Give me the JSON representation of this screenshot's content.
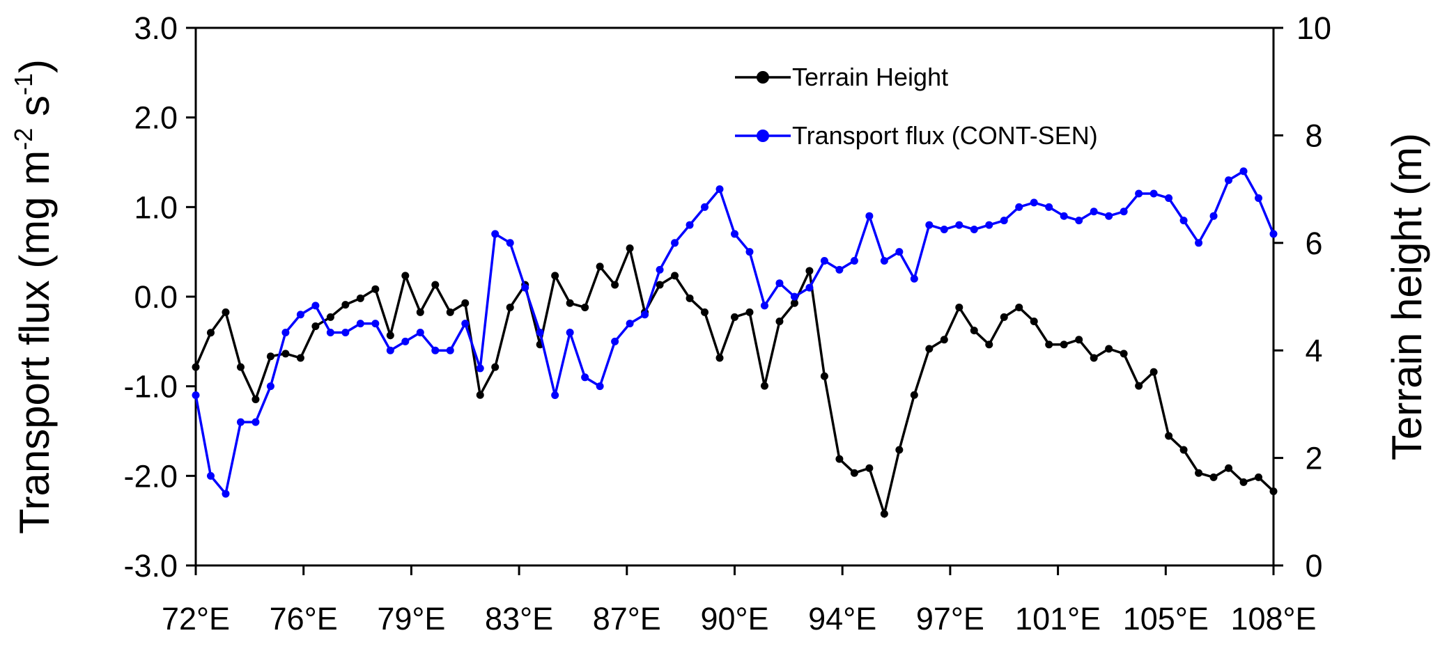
{
  "chart_data": {
    "type": "line",
    "ylabel": [
      "Transport flux (mg m",
      "-2",
      " s",
      "-1",
      ")"
    ],
    "y2label": "Terrain height (m)",
    "x": [
      72,
      72.5,
      73,
      73.5,
      74,
      74.5,
      75,
      75.5,
      76,
      76.5,
      77,
      77.5,
      78,
      78.5,
      79,
      79.5,
      80,
      80.5,
      81,
      81.5,
      82,
      82.5,
      83,
      83.5,
      84,
      84.5,
      85,
      85.5,
      86,
      86.5,
      87,
      87.5,
      88,
      88.5,
      89,
      89.5,
      90,
      90.5,
      91,
      91.5,
      92,
      92.5,
      93,
      93.5,
      94,
      94.5,
      95,
      95.5,
      96,
      96.5,
      97,
      97.5,
      98,
      98.5,
      99,
      99.5,
      100,
      100.5,
      101,
      101.5,
      102,
      102.5,
      103,
      103.5,
      104,
      104.5,
      105,
      105.5,
      106,
      106.5,
      107,
      107.5,
      108
    ],
    "series": [
      {
        "name": "Terrain Height",
        "color": "#000000",
        "axis": "y2",
        "values": [
          3.69,
          4.33,
          4.71,
          3.69,
          3.09,
          3.89,
          3.94,
          3.86,
          4.45,
          4.62,
          4.85,
          4.97,
          5.14,
          4.28,
          5.39,
          4.71,
          5.22,
          4.71,
          4.88,
          3.17,
          3.69,
          4.8,
          5.22,
          4.11,
          5.39,
          4.88,
          4.8,
          5.56,
          5.22,
          5.9,
          4.71,
          5.22,
          5.39,
          4.97,
          4.71,
          3.86,
          4.62,
          4.71,
          3.34,
          4.54,
          4.88,
          5.48,
          3.52,
          1.98,
          1.72,
          1.81,
          0.96,
          2.15,
          3.17,
          4.03,
          4.2,
          4.8,
          4.37,
          4.11,
          4.62,
          4.8,
          4.54,
          4.11,
          4.11,
          4.2,
          3.86,
          4.03,
          3.94,
          3.34,
          3.6,
          2.41,
          2.15,
          1.72,
          1.64,
          1.81,
          1.55,
          1.64,
          1.38
        ]
      },
      {
        "name": "Transport flux (CONT-SEN)",
        "color": "#0000ff",
        "values": [
          -1.1,
          -2.0,
          -2.2,
          -1.4,
          -1.4,
          -1.0,
          -0.4,
          -0.2,
          -0.1,
          -0.4,
          -0.4,
          -0.3,
          -0.3,
          -0.6,
          -0.5,
          -0.4,
          -0.6,
          -0.6,
          -0.3,
          -0.8,
          0.7,
          0.6,
          0.1,
          -0.4,
          -1.1,
          -0.4,
          -0.9,
          -1.0,
          -0.5,
          -0.3,
          -0.2,
          0.3,
          0.6,
          0.8,
          1.0,
          1.2,
          0.7,
          0.5,
          -0.1,
          0.15,
          0.0,
          0.1,
          0.4,
          0.3,
          0.4,
          0.9,
          0.4,
          0.5,
          0.2,
          0.8,
          0.75,
          0.8,
          0.75,
          0.8,
          0.85,
          1.0,
          1.05,
          1.0,
          0.9,
          0.85,
          0.95,
          0.9,
          0.95,
          1.15,
          1.15,
          1.1,
          0.85,
          0.6,
          0.9,
          1.3,
          1.4,
          1.1,
          0.7
        ]
      }
    ],
    "xlim": [
      72,
      108
    ],
    "xticks": [
      {
        "value": 72,
        "label": "72°E"
      },
      {
        "value": 75.6,
        "label": "76°E"
      },
      {
        "value": 79.2,
        "label": "79°E"
      },
      {
        "value": 82.8,
        "label": "83°E"
      },
      {
        "value": 86.4,
        "label": "87°E"
      },
      {
        "value": 90,
        "label": "90°E"
      },
      {
        "value": 93.6,
        "label": "94°E"
      },
      {
        "value": 97.2,
        "label": "97°E"
      },
      {
        "value": 100.8,
        "label": "101°E"
      },
      {
        "value": 104.4,
        "label": "105°E"
      },
      {
        "value": 108,
        "label": "108°E"
      }
    ],
    "ylim": [
      -3,
      3
    ],
    "yticks": [
      {
        "value": -3,
        "label": "-3.0"
      },
      {
        "value": -2,
        "label": "-2.0"
      },
      {
        "value": -1,
        "label": "-1.0"
      },
      {
        "value": 0,
        "label": "0.0"
      },
      {
        "value": 1,
        "label": "1.0"
      },
      {
        "value": 2,
        "label": "2.0"
      },
      {
        "value": 3,
        "label": "3.0"
      }
    ],
    "y2lim": [
      0,
      10
    ],
    "y2ticks": [
      0,
      2,
      4,
      6,
      8,
      10
    ],
    "grid": false
  }
}
